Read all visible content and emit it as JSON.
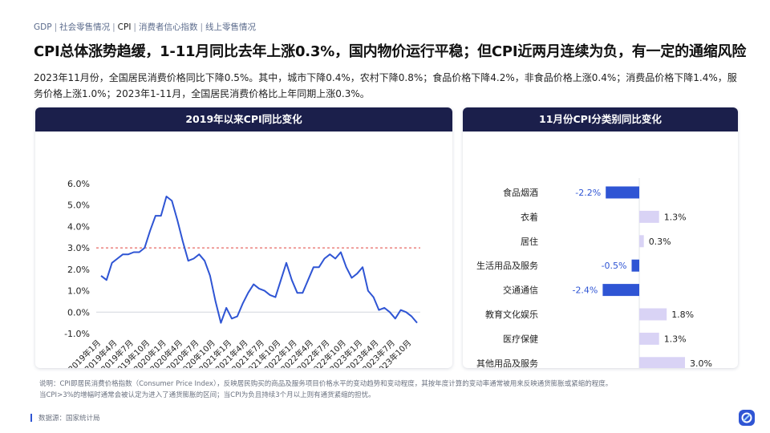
{
  "breadcrumb": [
    {
      "label": "GDP",
      "active": false
    },
    {
      "label": "社会零售情况",
      "active": false
    },
    {
      "label": "CPI",
      "active": true
    },
    {
      "label": "消费者信心指数",
      "active": false
    },
    {
      "label": "线上零售情况",
      "active": false
    }
  ],
  "page": {
    "title": "CPI总体涨势趋缓，1-11月同比去年上涨0.3%，国内物价运行平稳；但CPI近两月连续为负，有一定的通缩风险",
    "summary": "2023年11月份，全国居民消费价格同比下降0.5%。其中，城市下降0.4%，农村下降0.8%；食品价格下降4.2%，非食品价格上涨0.4%；消费品价格下降1.4%，服务价格上涨1.0%；2023年1-11月，全国居民消费价格比上年同期上涨0.3%。",
    "note_line1": "说明：CPI即居民消费价格指数（Consumer Price Index），反映居民购买的商品及服务项目价格水平的变动趋势和变动程度，其按年度计算的变动率通常被用来反映通货膨胀或紧缩的程度。",
    "note_line2": "当CPI>3%的增幅时通常会被认定为进入了通货膨胀的区间；当CPI为负且持续3个月以上则有通货紧缩的担忧。",
    "source": "数据源：国家统计局"
  },
  "panels": {
    "left_title": "2019年以来CPI同比变化",
    "right_title": "11月份CPI分类别同比变化"
  },
  "colors": {
    "header_bg": "#1b1f4b",
    "line": "#2f55d4",
    "threshold": "#e0443f",
    "negative_bar": "#2f55d4",
    "positive_bar": "#d9d3f5"
  },
  "chart_data": [
    {
      "type": "line",
      "title": "2019年以来CPI同比变化",
      "yticks": [
        "6.0%",
        "5.0%",
        "4.0%",
        "3.0%",
        "2.0%",
        "1.0%",
        "0.0%",
        "-1.0%"
      ],
      "ylim": [
        -1.0,
        6.0
      ],
      "threshold": 3.0,
      "xtick_labels": [
        "2019年1月",
        "2019年4月",
        "2019年7月",
        "2019年10月",
        "2020年1月",
        "2020年4月",
        "2020年7月",
        "2020年10月",
        "2021年1月",
        "2021年4月",
        "2021年7月",
        "2021年10月",
        "2022年1月",
        "2022年4月",
        "2022年7月",
        "2022年10月",
        "2023年1月",
        "2023年4月",
        "2023年7月",
        "2023年10月"
      ],
      "series": [
        {
          "values": [
            1.7,
            1.5,
            2.3,
            2.5,
            2.7,
            2.7,
            2.8,
            2.8,
            3.0,
            3.8,
            4.5,
            4.5,
            5.4,
            5.2,
            4.3,
            3.3,
            2.4,
            2.5,
            2.7,
            2.4,
            1.7,
            0.5,
            -0.5,
            0.2,
            -0.3,
            -0.2,
            0.4,
            0.9,
            1.3,
            1.1,
            1.0,
            0.8,
            0.7,
            1.5,
            2.3,
            1.5,
            0.9,
            0.9,
            1.5,
            2.1,
            2.1,
            2.5,
            2.7,
            2.5,
            2.8,
            2.1,
            1.6,
            1.8,
            2.1,
            1.0,
            0.7,
            0.1,
            0.2,
            0.0,
            -0.3,
            0.1,
            0.0,
            -0.2,
            -0.5
          ]
        }
      ]
    },
    {
      "type": "bar",
      "orientation": "horizontal",
      "title": "11月份CPI分类别同比变化",
      "categories": [
        "食品烟酒",
        "衣着",
        "居住",
        "生活用品及服务",
        "交通通信",
        "教育文化娱乐",
        "医疗保健",
        "其他用品及服务"
      ],
      "values": [
        -2.2,
        1.3,
        0.3,
        -0.5,
        -2.4,
        1.8,
        1.3,
        3.0
      ],
      "labels": [
        "-2.2%",
        "1.3%",
        "0.3%",
        "-0.5%",
        "-2.4%",
        "1.8%",
        "1.3%",
        "3.0%"
      ]
    }
  ]
}
